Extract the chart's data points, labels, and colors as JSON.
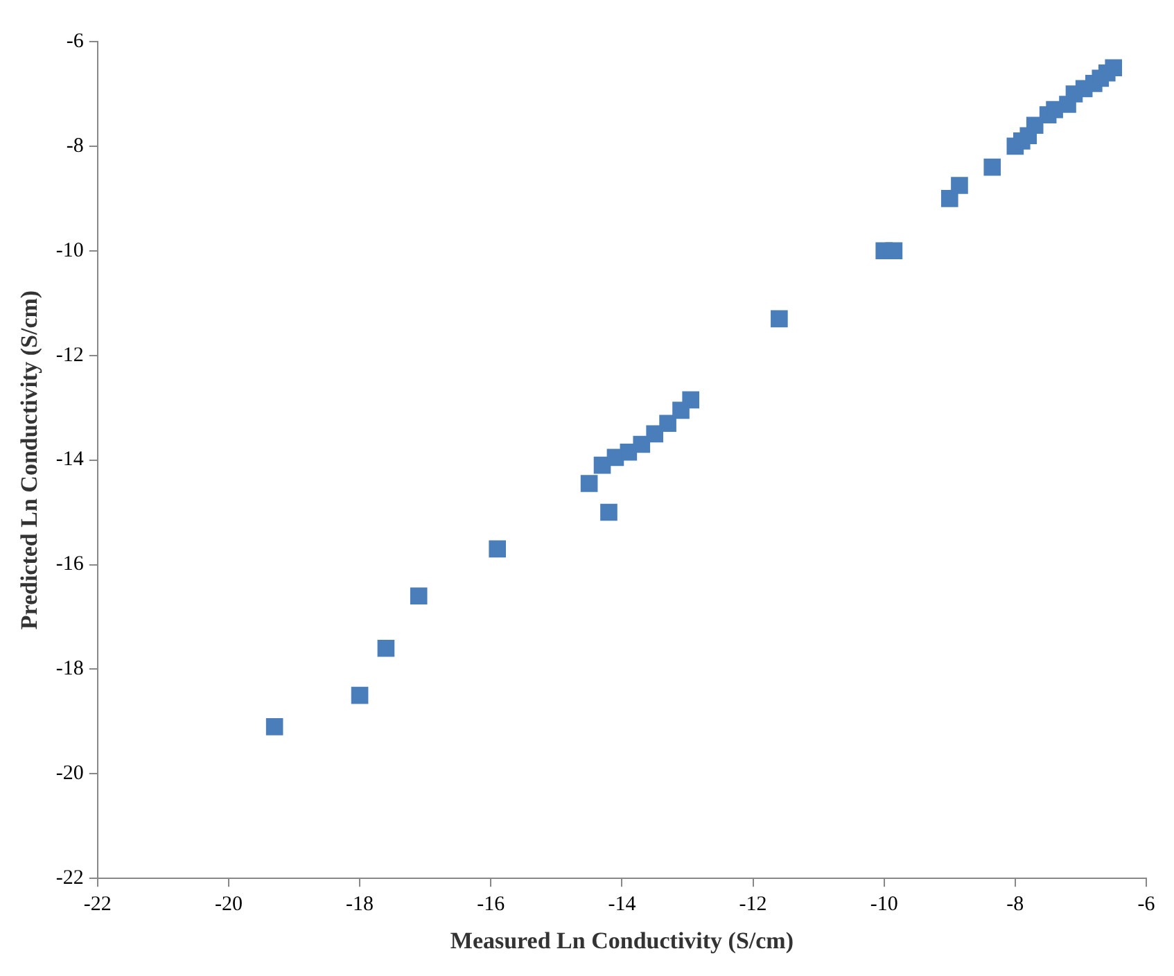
{
  "chart_data": {
    "type": "scatter",
    "xlabel": "Measured Ln Conductivity (S/cm)",
    "ylabel": "Predicted Ln Conductivity (S/cm)",
    "xlim": [
      -22,
      -6
    ],
    "xticks": [
      -22,
      -20,
      -18,
      -16,
      -14,
      -12,
      -10,
      -8,
      -6
    ],
    "ylim": [
      -22,
      -6
    ],
    "yticks": [
      -22,
      -20,
      -18,
      -16,
      -14,
      -12,
      -10,
      -8,
      -6
    ],
    "grid": false,
    "legend": false,
    "marker": "square",
    "series": [
      {
        "color": "#4a7ebb",
        "x": [
          -19.3,
          -18.0,
          -17.6,
          -17.1,
          -15.9,
          -14.5,
          -14.2,
          -14.3,
          -14.1,
          -13.9,
          -13.7,
          -13.5,
          -13.3,
          -13.1,
          -12.95,
          -11.6,
          -10.0,
          -9.85,
          -9.0,
          -8.85,
          -8.35,
          -8.0,
          -7.9,
          -7.8,
          -7.7,
          -7.5,
          -7.4,
          -7.2,
          -7.1,
          -6.95,
          -6.8,
          -6.7,
          -6.6,
          -6.5
        ],
        "values": [
          -19.1,
          -18.5,
          -17.6,
          -16.6,
          -15.7,
          -14.45,
          -15.0,
          -14.1,
          -13.95,
          -13.85,
          -13.7,
          -13.5,
          -13.3,
          -13.05,
          -12.85,
          -11.3,
          -10.0,
          -10.0,
          -9.0,
          -8.75,
          -8.4,
          -8.0,
          -7.9,
          -7.8,
          -7.6,
          -7.4,
          -7.3,
          -7.2,
          -7.0,
          -6.9,
          -6.8,
          -6.7,
          -6.6,
          -6.5
        ]
      }
    ]
  }
}
